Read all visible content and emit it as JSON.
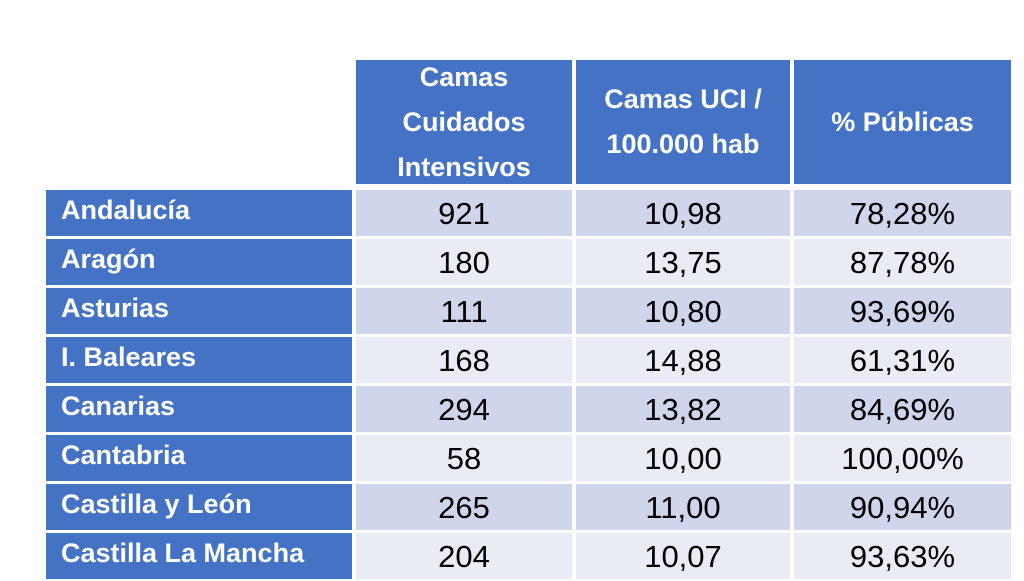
{
  "table": {
    "headers": [
      [
        "Camas",
        "Cuidados",
        "Intensivos"
      ],
      [
        "Camas UCI /",
        "100.000 hab"
      ],
      [
        "% Públicas"
      ]
    ],
    "rows": [
      {
        "region": "Andalucía",
        "camas": "921",
        "uci_100k": "10,98",
        "publicas": "78,28%"
      },
      {
        "region": "Aragón",
        "camas": "180",
        "uci_100k": "13,75",
        "publicas": "87,78%"
      },
      {
        "region": "Asturias",
        "camas": "111",
        "uci_100k": "10,80",
        "publicas": "93,69%"
      },
      {
        "region": "I. Baleares",
        "camas": "168",
        "uci_100k": "14,88",
        "publicas": "61,31%"
      },
      {
        "region": "Canarias",
        "camas": "294",
        "uci_100k": "13,82",
        "publicas": "84,69%"
      },
      {
        "region": "Cantabria",
        "camas": "58",
        "uci_100k": "10,00",
        "publicas": "100,00%"
      },
      {
        "region": "Castilla y León",
        "camas": "265",
        "uci_100k": "11,00",
        "publicas": "90,94%"
      },
      {
        "region": "Castilla La Mancha",
        "camas": "204",
        "uci_100k": "10,07",
        "publicas": "93,63%"
      }
    ]
  },
  "colors": {
    "header": "#4472c4",
    "band_dark": "#cfd5ea",
    "band_light": "#e9ebf5"
  }
}
